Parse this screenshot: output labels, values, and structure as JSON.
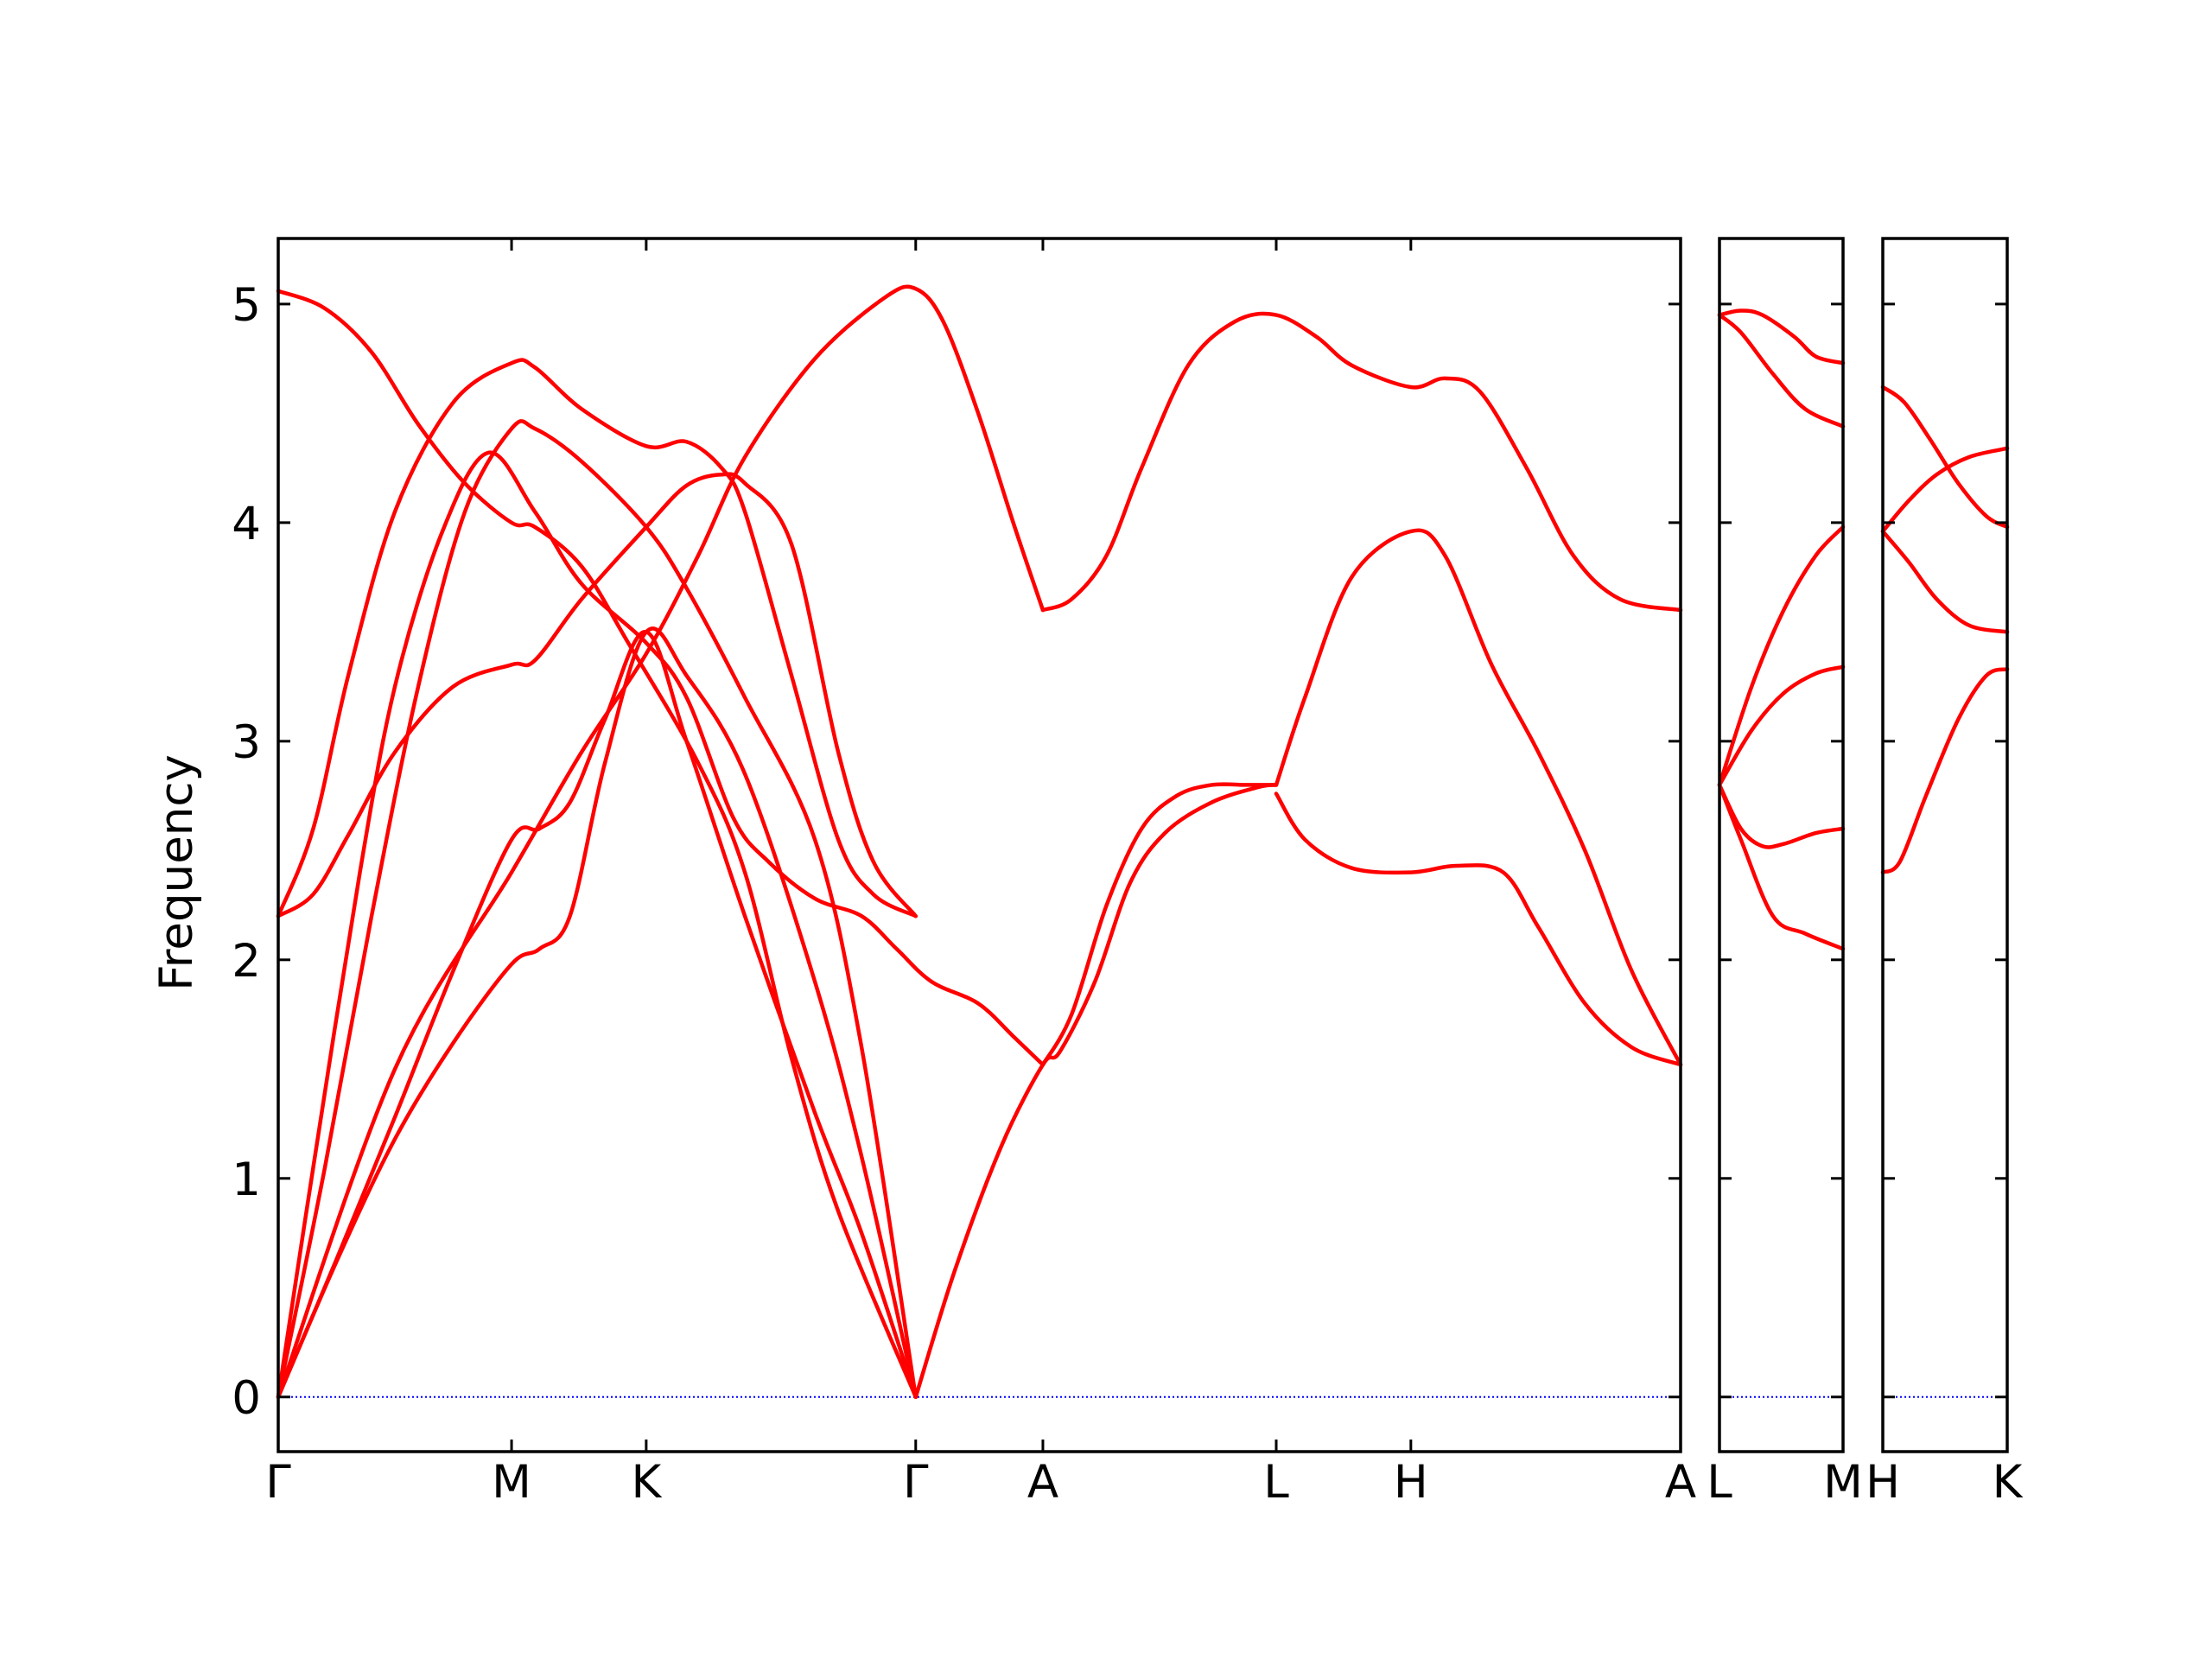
{
  "chart_data": {
    "type": "line",
    "ylabel": "Frequency",
    "ylim": [
      -0.25,
      5.3
    ],
    "yticks": [
      "0",
      "1",
      "2",
      "3",
      "4",
      "5"
    ],
    "colors": {
      "bands": "#ff0000",
      "zero_line": "#0000ff",
      "frame": "#000000"
    },
    "segments": [
      {
        "labels": [
          "Γ",
          "M",
          "K",
          "Γ",
          "A",
          "L",
          "H",
          "A"
        ],
        "label_positions": [
          0,
          1,
          1.577,
          2.732,
          3.277,
          4.277,
          4.854,
          6.01
        ],
        "xlim": [
          0,
          6.01
        ],
        "bands": [
          [
            [
              0,
              0
            ],
            [
              0.25,
              0.62
            ],
            [
              0.5,
              1.18
            ],
            [
              0.75,
              1.62
            ],
            [
              1.0,
              1.98
            ],
            [
              1.12,
              2.05
            ],
            [
              1.25,
              2.2
            ],
            [
              1.4,
              2.9
            ],
            [
              1.577,
              3.5
            ],
            [
              1.75,
              3.3
            ],
            [
              2.0,
              2.85
            ],
            [
              2.3,
              1.9
            ],
            [
              2.5,
              1.1
            ],
            [
              2.732,
              0
            ]
          ],
          [
            [
              0,
              0
            ],
            [
              0.25,
              0.63
            ],
            [
              0.5,
              1.28
            ],
            [
              0.75,
              1.95
            ],
            [
              1.0,
              2.55
            ],
            [
              1.12,
              2.6
            ],
            [
              1.25,
              2.72
            ],
            [
              1.4,
              3.1
            ],
            [
              1.577,
              3.5
            ],
            [
              1.75,
              3.0
            ],
            [
              2.0,
              2.2
            ],
            [
              2.3,
              1.3
            ],
            [
              2.5,
              0.75
            ],
            [
              2.732,
              0
            ]
          ],
          [
            [
              0,
              0
            ],
            [
              0.2,
              1.05
            ],
            [
              0.4,
              2.2
            ],
            [
              0.6,
              3.25
            ],
            [
              0.8,
              4.05
            ],
            [
              1.0,
              4.43
            ],
            [
              1.1,
              4.43
            ],
            [
              1.3,
              4.28
            ],
            [
              1.577,
              3.98
            ],
            [
              1.75,
              3.7
            ],
            [
              2.0,
              3.2
            ],
            [
              2.3,
              2.55
            ],
            [
              2.5,
              1.6
            ],
            [
              2.732,
              0
            ]
          ],
          [
            [
              0,
              2.2
            ],
            [
              0.15,
              2.3
            ],
            [
              0.3,
              2.57
            ],
            [
              0.5,
              2.95
            ],
            [
              0.75,
              3.25
            ],
            [
              1.0,
              3.35
            ],
            [
              1.1,
              3.37
            ],
            [
              1.3,
              3.65
            ],
            [
              1.577,
              3.98
            ],
            [
              1.75,
              4.17
            ],
            [
              1.9,
              4.22
            ],
            [
              2.0,
              4.18
            ],
            [
              2.2,
              3.9
            ],
            [
              2.4,
              2.95
            ],
            [
              2.55,
              2.45
            ],
            [
              2.732,
              2.2
            ]
          ],
          [
            [
              0,
              2.2
            ],
            [
              0.15,
              2.6
            ],
            [
              0.3,
              3.3
            ],
            [
              0.5,
              4.05
            ],
            [
              0.75,
              4.55
            ],
            [
              1.0,
              4.73
            ],
            [
              1.1,
              4.71
            ],
            [
              1.3,
              4.52
            ],
            [
              1.577,
              4.35
            ],
            [
              1.75,
              4.37
            ],
            [
              1.9,
              4.25
            ],
            [
              2.0,
              4.05
            ],
            [
              2.2,
              3.3
            ],
            [
              2.4,
              2.55
            ],
            [
              2.55,
              2.3
            ],
            [
              2.732,
              2.2
            ]
          ],
          [
            [
              0,
              5.06
            ],
            [
              0.2,
              4.98
            ],
            [
              0.4,
              4.78
            ],
            [
              0.6,
              4.45
            ],
            [
              0.8,
              4.18
            ],
            [
              1.0,
              4.0
            ],
            [
              1.1,
              3.98
            ],
            [
              1.3,
              3.8
            ],
            [
              1.5,
              3.45
            ],
            [
              1.8,
              2.9
            ],
            [
              2.0,
              2.4
            ],
            [
              2.2,
              1.55
            ],
            [
              2.4,
              0.85
            ],
            [
              2.732,
              0
            ]
          ],
          [
            [
              0,
              0
            ],
            [
              0.5,
              1.5
            ],
            [
              1.0,
              2.4
            ],
            [
              1.3,
              2.95
            ],
            [
              1.577,
              3.4
            ],
            [
              1.8,
              3.85
            ],
            [
              2.0,
              4.3
            ],
            [
              2.3,
              4.75
            ],
            [
              2.6,
              5.03
            ],
            [
              2.732,
              5.07
            ],
            [
              2.85,
              4.92
            ],
            [
              3.0,
              4.5
            ],
            [
              3.15,
              4.0
            ],
            [
              3.277,
              3.6
            ]
          ],
          [
            [
              0,
              0
            ],
            [
              0.15,
              1.05
            ],
            [
              0.35,
              2.4
            ],
            [
              0.5,
              3.25
            ],
            [
              0.7,
              3.95
            ],
            [
              0.9,
              4.32
            ],
            [
              1.1,
              4.05
            ],
            [
              1.3,
              3.72
            ],
            [
              1.577,
              3.45
            ],
            [
              1.75,
              3.2
            ],
            [
              1.95,
              2.65
            ],
            [
              2.1,
              2.45
            ],
            [
              2.3,
              2.28
            ],
            [
              2.5,
              2.2
            ],
            [
              2.65,
              2.05
            ],
            [
              2.8,
              1.9
            ],
            [
              3.0,
              1.8
            ],
            [
              3.15,
              1.65
            ],
            [
              3.277,
              1.52
            ]
          ],
          [
            [
              2.732,
              0
            ],
            [
              2.9,
              0.58
            ],
            [
              3.1,
              1.15
            ],
            [
              3.277,
              1.52
            ],
            [
              3.35,
              1.58
            ],
            [
              3.5,
              1.9
            ],
            [
              3.65,
              2.35
            ],
            [
              3.8,
              2.58
            ],
            [
              4.0,
              2.72
            ],
            [
              4.2,
              2.79
            ],
            [
              4.277,
              2.8
            ]
          ],
          [
            [
              3.277,
              1.52
            ],
            [
              3.4,
              1.75
            ],
            [
              3.55,
              2.25
            ],
            [
              3.7,
              2.6
            ],
            [
              3.85,
              2.75
            ],
            [
              4.0,
              2.8
            ],
            [
              4.15,
              2.8
            ],
            [
              4.277,
              2.8
            ]
          ],
          [
            [
              4.277,
              2.76
            ],
            [
              4.4,
              2.55
            ],
            [
              4.6,
              2.42
            ],
            [
              4.854,
              2.4
            ],
            [
              5.05,
              2.43
            ],
            [
              5.25,
              2.4
            ],
            [
              5.4,
              2.15
            ],
            [
              5.6,
              1.8
            ],
            [
              5.8,
              1.6
            ],
            [
              6.01,
              1.52
            ]
          ],
          [
            [
              4.277,
              2.8
            ],
            [
              4.4,
              3.2
            ],
            [
              4.6,
              3.75
            ],
            [
              4.854,
              3.96
            ],
            [
              5.0,
              3.85
            ],
            [
              5.2,
              3.35
            ],
            [
              5.4,
              2.95
            ],
            [
              5.6,
              2.5
            ],
            [
              5.8,
              1.95
            ],
            [
              6.01,
              1.52
            ]
          ],
          [
            [
              3.277,
              3.6
            ],
            [
              3.4,
              3.65
            ],
            [
              3.55,
              3.85
            ],
            [
              3.7,
              4.25
            ],
            [
              3.9,
              4.72
            ],
            [
              4.1,
              4.92
            ],
            [
              4.277,
              4.95
            ],
            [
              4.45,
              4.85
            ],
            [
              4.6,
              4.72
            ],
            [
              4.854,
              4.62
            ],
            [
              5.0,
              4.66
            ],
            [
              5.15,
              4.6
            ],
            [
              5.35,
              4.25
            ],
            [
              5.55,
              3.85
            ],
            [
              5.75,
              3.65
            ],
            [
              6.01,
              3.6
            ]
          ]
        ]
      },
      {
        "labels": [
          "L",
          "M"
        ],
        "label_positions": [
          0,
          0.577
        ],
        "xlim": [
          0,
          0.577
        ],
        "bands": [
          [
            [
              0,
              2.8
            ],
            [
              0.1,
              2.55
            ],
            [
              0.25,
              2.2
            ],
            [
              0.4,
              2.12
            ],
            [
              0.577,
              2.05
            ]
          ],
          [
            [
              0,
              2.8
            ],
            [
              0.1,
              2.6
            ],
            [
              0.2,
              2.52
            ],
            [
              0.3,
              2.53
            ],
            [
              0.45,
              2.58
            ],
            [
              0.577,
              2.6
            ]
          ],
          [
            [
              0,
              2.8
            ],
            [
              0.15,
              3.05
            ],
            [
              0.3,
              3.22
            ],
            [
              0.45,
              3.31
            ],
            [
              0.577,
              3.34
            ]
          ],
          [
            [
              0,
              2.8
            ],
            [
              0.15,
              3.25
            ],
            [
              0.3,
              3.6
            ],
            [
              0.45,
              3.85
            ],
            [
              0.577,
              3.98
            ]
          ],
          [
            [
              0,
              4.95
            ],
            [
              0.1,
              4.87
            ],
            [
              0.25,
              4.68
            ],
            [
              0.4,
              4.52
            ],
            [
              0.577,
              4.44
            ]
          ],
          [
            [
              0,
              4.95
            ],
            [
              0.1,
              4.97
            ],
            [
              0.2,
              4.95
            ],
            [
              0.35,
              4.85
            ],
            [
              0.45,
              4.76
            ],
            [
              0.577,
              4.73
            ]
          ]
        ]
      },
      {
        "labels": [
          "H",
          "K"
        ],
        "label_positions": [
          0,
          0.577
        ],
        "xlim": [
          0,
          0.577
        ],
        "bands": [
          [
            [
              0,
              2.4
            ],
            [
              0.08,
              2.45
            ],
            [
              0.2,
              2.75
            ],
            [
              0.35,
              3.1
            ],
            [
              0.48,
              3.3
            ],
            [
              0.577,
              3.33
            ]
          ],
          [
            [
              0,
              3.96
            ],
            [
              0.12,
              3.82
            ],
            [
              0.25,
              3.65
            ],
            [
              0.4,
              3.53
            ],
            [
              0.577,
              3.5
            ]
          ],
          [
            [
              0,
              3.96
            ],
            [
              0.12,
              4.1
            ],
            [
              0.25,
              4.22
            ],
            [
              0.4,
              4.3
            ],
            [
              0.577,
              4.34
            ]
          ],
          [
            [
              0,
              4.62
            ],
            [
              0.1,
              4.55
            ],
            [
              0.22,
              4.38
            ],
            [
              0.35,
              4.18
            ],
            [
              0.48,
              4.03
            ],
            [
              0.577,
              3.98
            ]
          ]
        ]
      }
    ]
  }
}
